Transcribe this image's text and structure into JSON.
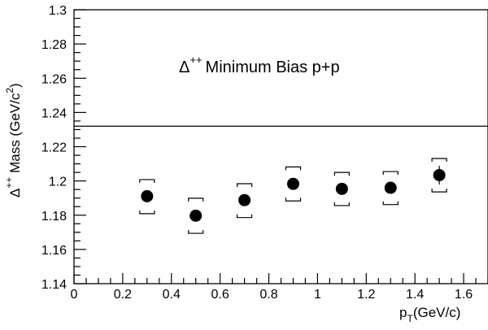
{
  "chart_data": {
    "type": "scatter",
    "title": "",
    "annotation": {
      "symbol": "Δ",
      "superscript": "++",
      "text": "Minimum Bias p+p"
    },
    "xlabel": {
      "main": "p",
      "subscript": "T",
      "suffix": "(GeV/c)"
    },
    "ylabel": {
      "symbol": "Δ",
      "superscript": "++",
      "main": " Mass (GeV/c",
      "power": "2",
      "suffix": ")"
    },
    "xlim": [
      0,
      1.7
    ],
    "ylim": [
      1.14,
      1.3
    ],
    "x_ticks": [
      "0",
      "0.2",
      "0.4",
      "0.6",
      "0.8",
      "1",
      "1.2",
      "1.4",
      "1.6"
    ],
    "y_ticks": [
      "1.14",
      "1.16",
      "1.18",
      "1.2",
      "1.22",
      "1.24",
      "1.26",
      "1.28",
      "1.3"
    ],
    "reference_line": 1.232,
    "series": [
      {
        "x": [
          0.3,
          0.5,
          0.7,
          0.9,
          1.1,
          1.3,
          1.5
        ],
        "y": [
          1.1911,
          1.1797,
          1.1888,
          1.1983,
          1.1954,
          1.196,
          1.2034
        ],
        "sys_upper": [
          1.2008,
          1.1899,
          1.1984,
          1.2082,
          1.205,
          1.2055,
          1.2131
        ],
        "sys_lower": [
          1.1809,
          1.1694,
          1.1786,
          1.1883,
          1.1856,
          1.1862,
          1.1936
        ],
        "stat_error": [
          0.0015,
          0.0015,
          0.0015,
          0.002,
          0.002,
          0.002,
          0.0055
        ]
      }
    ]
  }
}
